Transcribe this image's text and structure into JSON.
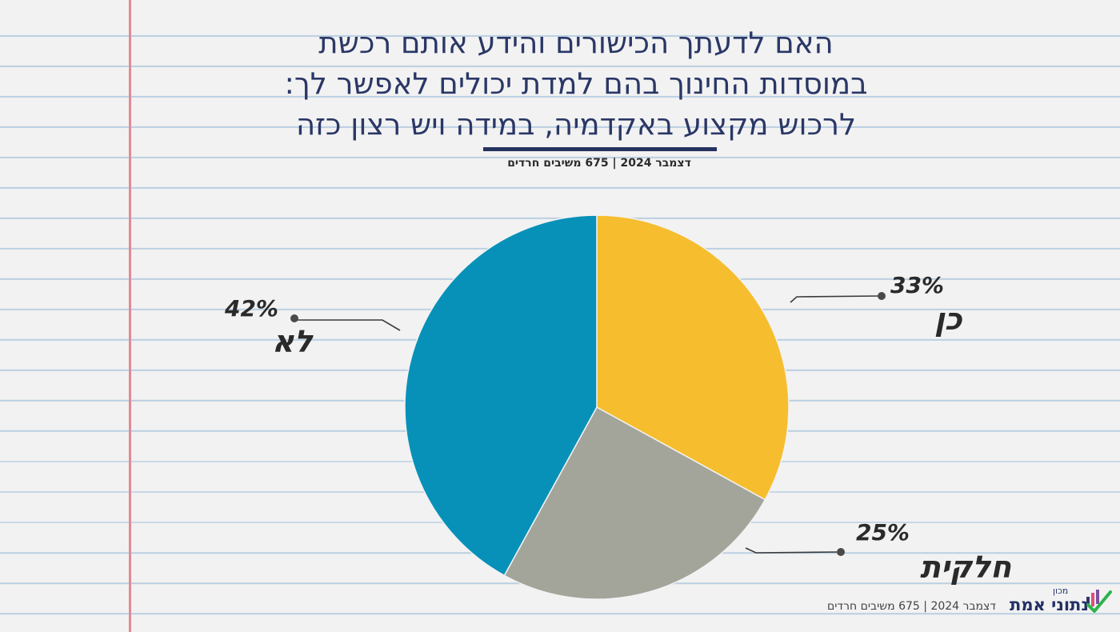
{
  "title_lines": [
    "האם לדעתך הכישורים והידע אותם רכשת",
    "במוסדות החינוך בהם למדת יכולים לאפשר לך:",
    "לרכוש מקצוע באקדמיה, במידה ויש רצון כזה"
  ],
  "subtitle": "דצמבר 2024 | 675 משיבים חרדים",
  "footer": "דצמבר 2024 | 675 משיבים חרדים",
  "logo": {
    "top": "מכון",
    "main": "נתוני אמת"
  },
  "colors": {
    "title": "#2a3766",
    "margin_line": "#e28a93",
    "ruled_line": "#bcd0e2",
    "yes": "#f6bd2e",
    "partial": "#a3a59b",
    "no": "#0791b9"
  },
  "chart_data": {
    "type": "pie",
    "start": "12 o'clock, clockwise",
    "categories": [
      "כן",
      "חלקית",
      "לא"
    ],
    "values": [
      33,
      25,
      42
    ],
    "labels": [
      "33%",
      "25%",
      "42%"
    ],
    "colors": [
      "#f6bd2e",
      "#a3a59b",
      "#0791b9"
    ]
  }
}
